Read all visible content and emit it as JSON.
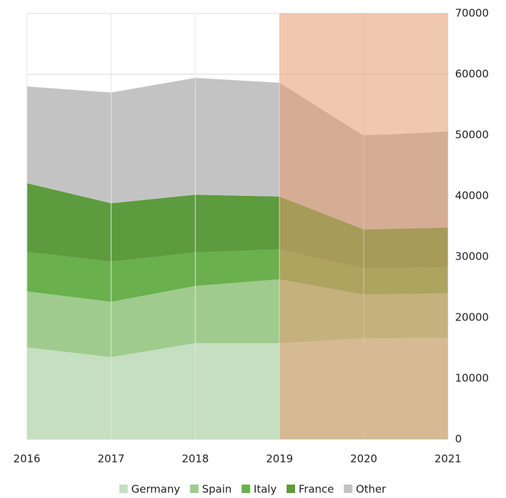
{
  "chart_data": {
    "type": "stacked_area",
    "categories": [
      "2016",
      "2017",
      "2018",
      "2019",
      "2020",
      "2021"
    ],
    "series": [
      {
        "name": "Germany",
        "color": "#c5dfc0",
        "values": [
          15100,
          13500,
          15800,
          15800,
          16600,
          16700
        ]
      },
      {
        "name": "Spain",
        "color": "#9fcc8e",
        "values": [
          9200,
          9100,
          9400,
          10500,
          7200,
          7300
        ]
      },
      {
        "name": "Italy",
        "color": "#6ab04c",
        "values": [
          6500,
          6600,
          5500,
          4900,
          4300,
          4300
        ]
      },
      {
        "name": "France",
        "color": "#5c9b3e",
        "values": [
          11300,
          9600,
          9500,
          8700,
          6400,
          6500
        ]
      },
      {
        "name": "Other",
        "color": "#c3c3c3",
        "values": [
          15900,
          18200,
          19200,
          18700,
          15400,
          15800
        ]
      }
    ],
    "ylim": [
      0,
      70000
    ],
    "yticks": [
      0,
      10000,
      20000,
      30000,
      40000,
      50000,
      60000,
      70000
    ],
    "grid": true,
    "y_axis_side": "right",
    "legend": "bottom",
    "highlight": {
      "from": "2019",
      "to": "2021",
      "color": "#e39b70",
      "opacity": 0.55
    }
  }
}
